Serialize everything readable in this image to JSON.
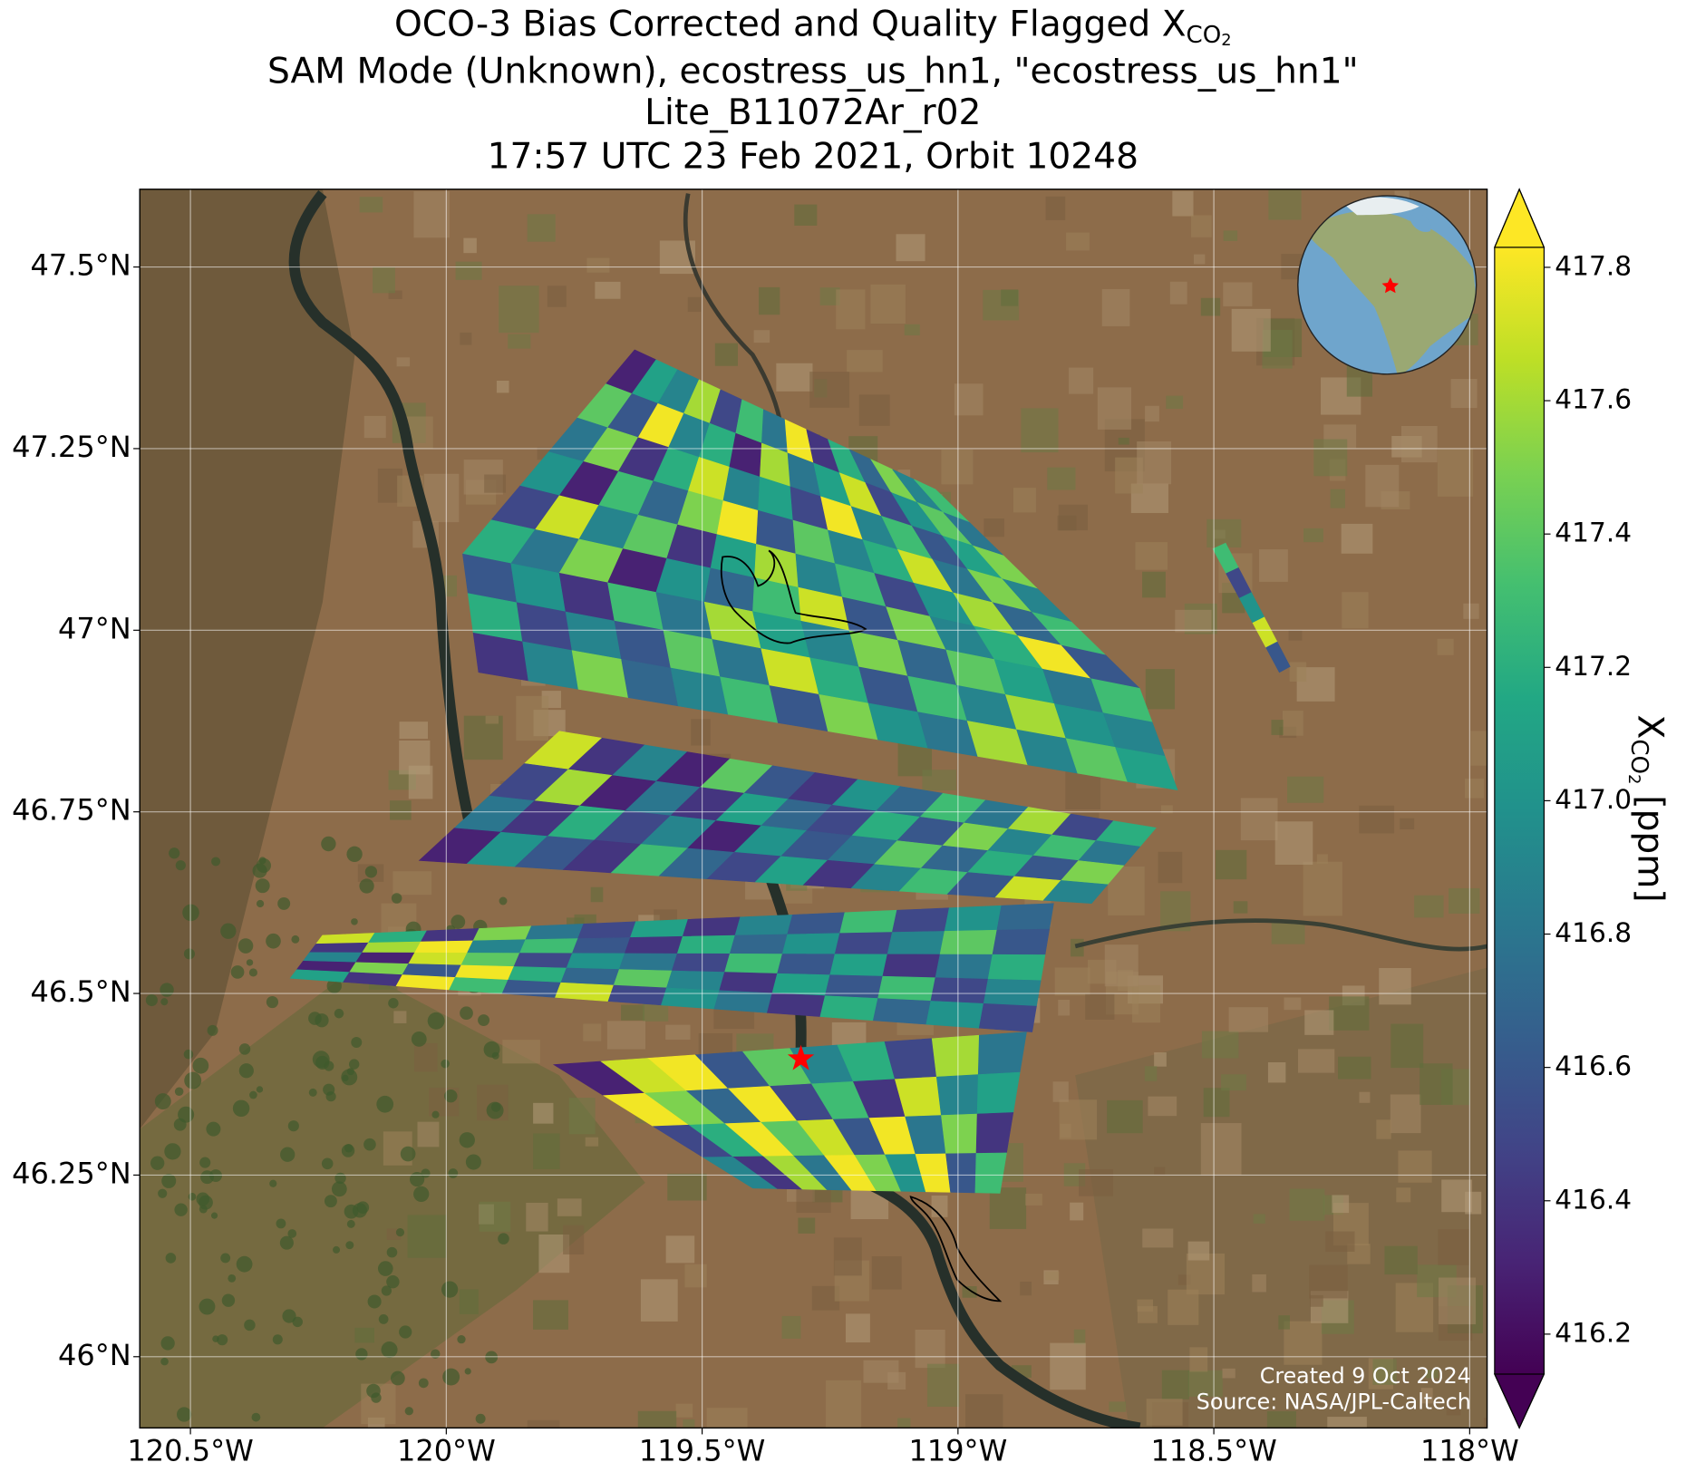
{
  "chart_data": {
    "type": "map",
    "title": [
      {
        "text": "OCO-3 Bias Corrected and Quality Flagged X",
        "sub": "CO",
        "subsub": "2"
      },
      {
        "text": "SAM Mode (Unknown), ecostress_us_hn1, \"ecostress_us_hn1\""
      },
      {
        "text": "Lite_B11072Ar_r02"
      },
      {
        "text": "17:57 UTC 23 Feb 2021, Orbit 10248"
      }
    ],
    "xlim": [
      -120.599,
      -117.966
    ],
    "ylim": [
      45.902,
      47.607
    ],
    "xticks": [
      {
        "value": -120.5,
        "label": "120.5°W"
      },
      {
        "value": -120,
        "label": "120°W"
      },
      {
        "value": -119.5,
        "label": "119.5°W"
      },
      {
        "value": -119,
        "label": "119°W"
      },
      {
        "value": -118.5,
        "label": "118.5°W"
      },
      {
        "value": -118,
        "label": "118°W"
      }
    ],
    "yticks": [
      {
        "value": 46,
        "label": "46°N"
      },
      {
        "value": 46.25,
        "label": "46.25°N"
      },
      {
        "value": 46.5,
        "label": "46.5°N"
      },
      {
        "value": 46.75,
        "label": "46.75°N"
      },
      {
        "value": 47,
        "label": "47°N"
      },
      {
        "value": 47.25,
        "label": "47.25°N"
      },
      {
        "value": 47.5,
        "label": "47.5°N"
      }
    ],
    "grid": true,
    "colormap": "viridis",
    "extend": "both",
    "clim": [
      416.14,
      417.83
    ],
    "cticks": [
      416.2,
      416.4,
      416.6,
      416.8,
      {
        "value": 417,
        "label": "417.0"
      },
      417.2,
      417.4,
      417.6,
      417.8
    ],
    "colorbar_label": {
      "text": "X",
      "sub": "CO",
      "subsub": "2",
      "units": "[ppm]"
    },
    "target": {
      "lon": -119.307,
      "lat": 46.41
    },
    "swaths": [
      {
        "corners": [
          [
            -119.632,
            47.386
          ],
          [
            -119.044,
            47.194
          ],
          [
            -118.645,
            46.92
          ],
          [
            -119.968,
            47.105
          ]
        ],
        "values": [
          [
            416.3,
            417.1,
            416.9,
            417.6,
            416.5,
            417.3,
            416.8,
            417.8,
            416.4,
            417.2,
            416.7,
            417.5,
            416.9,
            417.3
          ],
          [
            417.4,
            416.6,
            417.8,
            416.9,
            417.2,
            416.3,
            417.6,
            416.8,
            417.1,
            417.7,
            416.5,
            417.0,
            417.4,
            416.8
          ],
          [
            416.8,
            417.5,
            416.4,
            417.2,
            417.7,
            416.9,
            417.1,
            416.5,
            417.8,
            416.9,
            417.3,
            416.6,
            417.1,
            417.5
          ],
          [
            417.0,
            416.3,
            417.3,
            416.7,
            417.5,
            417.8,
            416.6,
            417.4,
            416.9,
            417.2,
            417.7,
            416.8,
            417.5,
            416.9
          ],
          [
            416.5,
            417.7,
            416.9,
            417.4,
            416.4,
            417.1,
            417.6,
            416.9,
            417.3,
            416.5,
            417.0,
            417.6,
            416.7,
            417.3
          ],
          [
            417.2,
            416.8,
            417.5,
            416.3,
            417.0,
            416.7,
            417.3,
            417.7,
            416.6,
            417.5,
            416.9,
            417.2,
            417.8,
            416.6
          ]
        ]
      },
      {
        "corners": [
          [
            -119.968,
            47.105
          ],
          [
            -118.645,
            46.92
          ],
          [
            -118.571,
            46.78
          ],
          [
            -119.937,
            46.942
          ]
        ],
        "values": [
          [
            416.6,
            417.0,
            416.4,
            417.3,
            416.8,
            417.6,
            417.1,
            416.9,
            417.5,
            416.7,
            417.4,
            417.1,
            416.8,
            417.3
          ],
          [
            417.2,
            416.5,
            416.9,
            416.6,
            417.4,
            416.8,
            417.7,
            417.2,
            416.6,
            417.3,
            416.9,
            417.6,
            417.0,
            416.9
          ],
          [
            416.4,
            416.9,
            417.5,
            416.7,
            416.9,
            417.3,
            416.6,
            417.5,
            417.0,
            416.8,
            417.6,
            416.9,
            417.4,
            417.1
          ]
        ]
      },
      {
        "corners": [
          [
            -119.779,
            46.861
          ],
          [
            -118.613,
            46.728
          ],
          [
            -118.739,
            46.624
          ],
          [
            -120.053,
            46.683
          ]
        ],
        "values": [
          [
            417.7,
            416.4,
            416.9,
            416.3,
            417.4,
            416.6,
            416.4,
            417.0,
            416.7,
            417.3,
            416.8,
            417.6,
            416.5,
            417.2
          ],
          [
            416.5,
            417.6,
            416.3,
            416.8,
            416.4,
            417.1,
            416.7,
            416.5,
            417.2,
            416.6,
            417.5,
            416.9,
            417.3,
            416.8
          ],
          [
            416.8,
            416.4,
            417.2,
            416.5,
            416.9,
            416.3,
            417.0,
            416.6,
            416.8,
            417.4,
            416.7,
            417.2,
            416.6,
            417.5
          ],
          [
            416.3,
            417.0,
            416.6,
            416.4,
            417.3,
            416.7,
            416.5,
            417.1,
            416.4,
            416.9,
            417.3,
            416.6,
            417.7,
            416.9
          ]
        ]
      },
      {
        "corners": [
          [
            -120.242,
            46.58
          ],
          [
            -118.813,
            46.624
          ],
          [
            -118.855,
            46.447
          ],
          [
            -120.305,
            46.521
          ]
        ],
        "values": [
          [
            417.7,
            417.2,
            416.4,
            417.5,
            416.8,
            416.5,
            417.1,
            416.4,
            416.9,
            416.6,
            417.3,
            416.5,
            417.0,
            416.7
          ],
          [
            416.4,
            417.6,
            417.8,
            416.9,
            417.3,
            416.6,
            416.4,
            417.2,
            416.7,
            417.0,
            416.5,
            416.9,
            417.4,
            416.6
          ],
          [
            416.9,
            416.3,
            417.7,
            417.4,
            416.5,
            417.0,
            416.8,
            416.5,
            417.3,
            416.6,
            417.1,
            416.4,
            416.8,
            417.2
          ],
          [
            416.3,
            417.5,
            416.6,
            417.8,
            417.2,
            416.7,
            417.4,
            416.9,
            416.4,
            417.1,
            416.6,
            417.3,
            416.5,
            416.9
          ],
          [
            417.1,
            416.4,
            417.8,
            417.3,
            416.6,
            417.7,
            416.5,
            417.0,
            416.8,
            416.4,
            417.2,
            416.7,
            417.0,
            416.5
          ]
        ]
      },
      {
        "corners": [
          [
            -119.79,
            46.402
          ],
          [
            -118.866,
            46.447
          ],
          [
            -118.918,
            46.225
          ],
          [
            -119.401,
            46.232
          ]
        ],
        "values": [
          [
            416.3,
            417.7,
            417.8,
            416.6,
            417.4,
            416.9,
            417.2,
            416.5,
            417.6,
            416.8
          ],
          [
            417.8,
            417.5,
            416.7,
            417.8,
            416.5,
            417.3,
            416.4,
            417.7,
            416.9,
            417.1
          ],
          [
            416.5,
            417.2,
            417.8,
            417.4,
            417.7,
            416.6,
            417.8,
            416.8,
            417.5,
            416.4
          ],
          [
            416.9,
            416.4,
            417.6,
            416.8,
            417.8,
            417.5,
            417.0,
            417.8,
            416.6,
            417.3
          ]
        ]
      },
      {
        "corners": [
          [
            -118.477,
            47.12
          ],
          [
            -118.351,
            46.95
          ],
          [
            -118.372,
            46.942
          ],
          [
            -118.502,
            47.112
          ]
        ],
        "values": [
          [
            417.3,
            416.5,
            417.0,
            417.7,
            416.6
          ]
        ]
      }
    ],
    "footer": [
      "Created 9 Oct 2024",
      "Source: NASA/JPL-Caltech"
    ]
  }
}
